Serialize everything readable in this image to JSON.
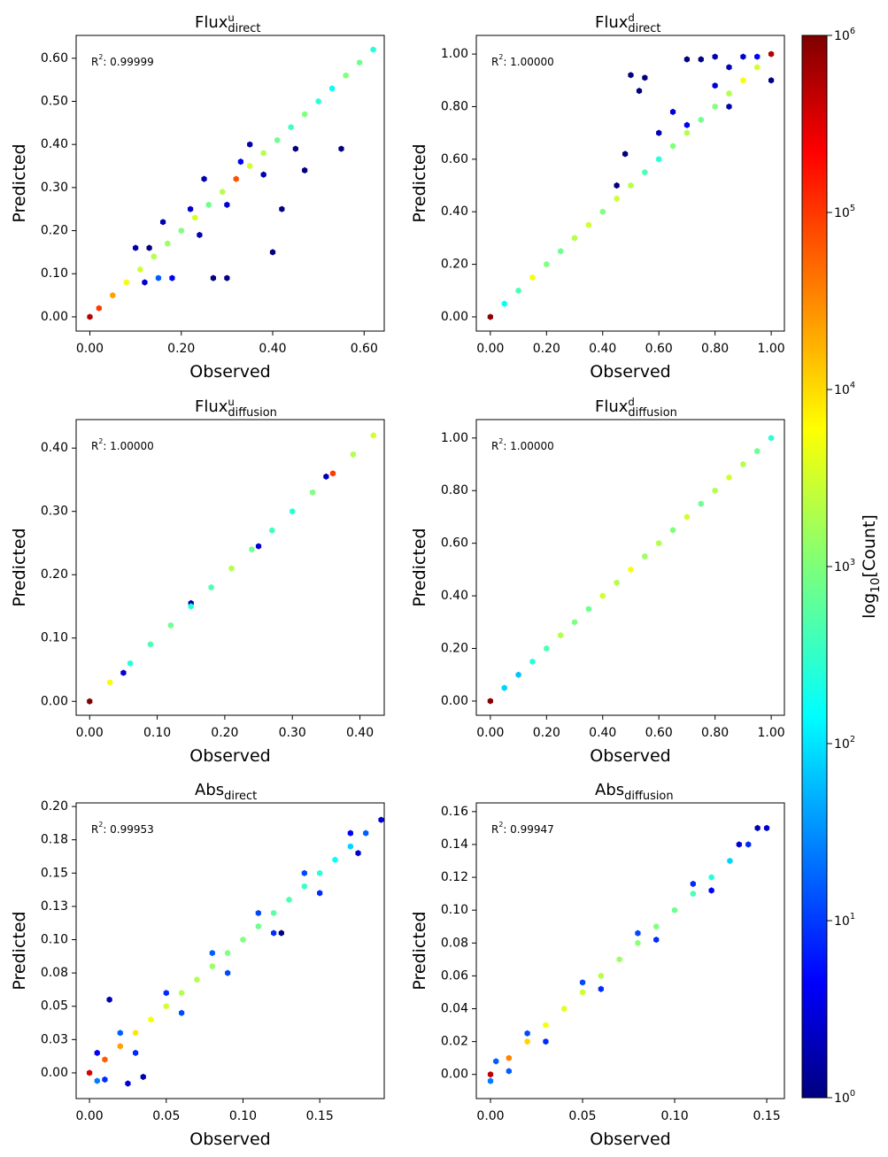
{
  "chart_data": [
    {
      "type": "hexbin",
      "title": {
        "base": "Flux",
        "sup": "u",
        "sub": "direct"
      },
      "annotation": {
        "base": "R",
        "sup": "2",
        "text": ": 0.99999"
      },
      "xlabel": "Observed",
      "ylabel": "Predicted",
      "x": [
        0.1,
        0.13,
        0.15,
        0.18,
        0.12,
        0.16,
        0.22,
        0.24,
        0.27,
        0.3,
        0.33,
        0.35,
        0.38,
        0.4,
        0.42,
        0.45,
        0.47,
        0.55,
        0.3,
        0.25,
        0,
        0.02,
        0.05,
        0.08,
        0.11,
        0.14,
        0.17,
        0.2,
        0.23,
        0.26,
        0.29,
        0.32,
        0.35,
        0.38,
        0.41,
        0.44,
        0.47,
        0.5,
        0.53,
        0.56,
        0.59,
        0.62
      ],
      "y": [
        0.16,
        0.16,
        0.09,
        0.09,
        0.08,
        0.22,
        0.25,
        0.19,
        0.09,
        0.09,
        0.36,
        0.4,
        0.33,
        0.15,
        0.25,
        0.39,
        0.34,
        0.39,
        0.26,
        0.32,
        0,
        0.02,
        0.05,
        0.08,
        0.11,
        0.14,
        0.17,
        0.2,
        0.23,
        0.26,
        0.29,
        0.32,
        0.35,
        0.38,
        0.41,
        0.44,
        0.47,
        0.5,
        0.53,
        0.56,
        0.59,
        0.62
      ],
      "counts": [
        2,
        1,
        20,
        5,
        3,
        2,
        3,
        2,
        1,
        1,
        5,
        2,
        2,
        1,
        1,
        1,
        1,
        1,
        3,
        2,
        500000,
        80000,
        20000,
        5000,
        3000,
        2000,
        1500,
        1000,
        3000,
        800,
        2000,
        60000,
        3000,
        2000,
        800,
        400,
        1000,
        300,
        200,
        1000,
        800,
        300
      ],
      "xlim": [
        -0.03,
        0.644
      ],
      "ylim": [
        -0.033,
        0.653
      ],
      "xticks": [
        {
          "value": 0,
          "label": "0.00"
        },
        {
          "value": 0.2,
          "label": "0.20"
        },
        {
          "value": 0.4,
          "label": "0.40"
        },
        {
          "value": 0.6,
          "label": "0.60"
        }
      ],
      "yticks": [
        {
          "value": 0,
          "label": "0.00"
        },
        {
          "value": 0.1,
          "label": "0.10"
        },
        {
          "value": 0.2,
          "label": "0.20"
        },
        {
          "value": 0.3,
          "label": "0.30"
        },
        {
          "value": 0.4,
          "label": "0.40"
        },
        {
          "value": 0.5,
          "label": "0.50"
        },
        {
          "value": 0.6,
          "label": "0.60"
        }
      ]
    },
    {
      "type": "hexbin",
      "title": {
        "base": "Flux",
        "sup": "d",
        "sub": "direct"
      },
      "annotation": {
        "base": "R",
        "sup": "2",
        "text": ": 1.00000"
      },
      "xlabel": "Observed",
      "ylabel": "Predicted",
      "x": [
        0.45,
        0.48,
        0.5,
        0.55,
        0.53,
        0.6,
        0.65,
        0.7,
        0.75,
        0.8,
        0.85,
        0.9,
        0.95,
        1.0,
        0.7,
        0.8,
        0.85,
        0,
        0.05,
        0.1,
        0.15,
        0.2,
        0.25,
        0.3,
        0.35,
        0.4,
        0.45,
        0.5,
        0.55,
        0.6,
        0.65,
        0.7,
        0.75,
        0.8,
        0.85,
        0.9,
        0.95,
        1.0
      ],
      "y": [
        0.5,
        0.62,
        0.92,
        0.91,
        0.86,
        0.7,
        0.78,
        0.98,
        0.98,
        0.99,
        0.95,
        0.99,
        0.99,
        0.9,
        0.73,
        0.88,
        0.8,
        0,
        0.05,
        0.1,
        0.15,
        0.2,
        0.25,
        0.3,
        0.35,
        0.4,
        0.45,
        0.5,
        0.55,
        0.6,
        0.65,
        0.7,
        0.75,
        0.8,
        0.85,
        0.9,
        0.95,
        1.0
      ],
      "counts": [
        1,
        1,
        1,
        1,
        1,
        2,
        3,
        1,
        1,
        2,
        2,
        3,
        5,
        1,
        5,
        3,
        2,
        800000,
        200,
        500,
        5000,
        1000,
        800,
        2000,
        3000,
        1000,
        3000,
        2000,
        500,
        300,
        1000,
        2000,
        800,
        1000,
        2000,
        5000,
        3000,
        500000
      ],
      "xlim": [
        -0.05,
        1.047
      ],
      "ylim": [
        -0.054,
        1.071
      ],
      "xticks": [
        {
          "value": 0,
          "label": "0.00"
        },
        {
          "value": 0.2,
          "label": "0.20"
        },
        {
          "value": 0.4,
          "label": "0.40"
        },
        {
          "value": 0.6,
          "label": "0.60"
        },
        {
          "value": 0.8,
          "label": "0.80"
        },
        {
          "value": 1,
          "label": "1.00"
        }
      ],
      "yticks": [
        {
          "value": 0,
          "label": "0.00"
        },
        {
          "value": 0.2,
          "label": "0.20"
        },
        {
          "value": 0.4,
          "label": "0.40"
        },
        {
          "value": 0.6,
          "label": "0.60"
        },
        {
          "value": 0.8,
          "label": "0.80"
        },
        {
          "value": 1,
          "label": "1.00"
        }
      ]
    },
    {
      "type": "hexbin",
      "title": {
        "base": "Flux",
        "sup": "u",
        "sub": "diffusion"
      },
      "annotation": {
        "base": "R",
        "sup": "2",
        "text": ": 1.00000"
      },
      "xlabel": "Observed",
      "ylabel": "Predicted",
      "x": [
        0.05,
        0.15,
        0.25,
        0.35,
        0,
        0.03,
        0.06,
        0.09,
        0.12,
        0.15,
        0.18,
        0.21,
        0.24,
        0.27,
        0.3,
        0.33,
        0.36,
        0.39,
        0.42
      ],
      "y": [
        0.045,
        0.155,
        0.245,
        0.355,
        0,
        0.03,
        0.06,
        0.09,
        0.12,
        0.15,
        0.18,
        0.21,
        0.24,
        0.27,
        0.3,
        0.33,
        0.36,
        0.39,
        0.42
      ],
      "counts": [
        3,
        2,
        3,
        2,
        1000000,
        5000,
        300,
        500,
        800,
        300,
        500,
        2000,
        800,
        400,
        300,
        1000,
        80000,
        2000,
        3000
      ],
      "xlim": [
        -0.02,
        0.436
      ],
      "ylim": [
        -0.022,
        0.445
      ],
      "xticks": [
        {
          "value": 0,
          "label": "0.00"
        },
        {
          "value": 0.1,
          "label": "0.10"
        },
        {
          "value": 0.2,
          "label": "0.20"
        },
        {
          "value": 0.3,
          "label": "0.30"
        },
        {
          "value": 0.4,
          "label": "0.40"
        }
      ],
      "yticks": [
        {
          "value": 0,
          "label": "0.00"
        },
        {
          "value": 0.1,
          "label": "0.10"
        },
        {
          "value": 0.2,
          "label": "0.20"
        },
        {
          "value": 0.3,
          "label": "0.30"
        },
        {
          "value": 0.4,
          "label": "0.40"
        }
      ]
    },
    {
      "type": "hexbin",
      "title": {
        "base": "Flux",
        "sup": "d",
        "sub": "diffusion"
      },
      "annotation": {
        "base": "R",
        "sup": "2",
        "text": ": 1.00000"
      },
      "xlabel": "Observed",
      "ylabel": "Predicted",
      "x": [
        0,
        0.05,
        0.1,
        0.15,
        0.2,
        0.25,
        0.3,
        0.35,
        0.4,
        0.45,
        0.5,
        0.55,
        0.6,
        0.65,
        0.7,
        0.75,
        0.8,
        0.85,
        0.9,
        0.95,
        1.0
      ],
      "y": [
        0,
        0.05,
        0.1,
        0.15,
        0.2,
        0.25,
        0.3,
        0.35,
        0.4,
        0.45,
        0.5,
        0.55,
        0.6,
        0.65,
        0.7,
        0.75,
        0.8,
        0.85,
        0.9,
        0.95,
        1.0
      ],
      "counts": [
        900000,
        100,
        80,
        300,
        500,
        2000,
        1000,
        800,
        3000,
        2000,
        5000,
        1500,
        2000,
        1000,
        3000,
        800,
        2000,
        3000,
        2000,
        800,
        300
      ],
      "xlim": [
        -0.05,
        1.047
      ],
      "ylim": [
        -0.054,
        1.07
      ],
      "xticks": [
        {
          "value": 0,
          "label": "0.00"
        },
        {
          "value": 0.2,
          "label": "0.20"
        },
        {
          "value": 0.4,
          "label": "0.40"
        },
        {
          "value": 0.6,
          "label": "0.60"
        },
        {
          "value": 0.8,
          "label": "0.80"
        },
        {
          "value": 1,
          "label": "1.00"
        }
      ],
      "yticks": [
        {
          "value": 0,
          "label": "0.00"
        },
        {
          "value": 0.2,
          "label": "0.20"
        },
        {
          "value": 0.4,
          "label": "0.40"
        },
        {
          "value": 0.6,
          "label": "0.60"
        },
        {
          "value": 0.8,
          "label": "0.80"
        },
        {
          "value": 1,
          "label": "1.00"
        }
      ]
    },
    {
      "type": "hexbin",
      "title": {
        "base": "Abs",
        "sub": "direct"
      },
      "annotation": {
        "base": "R",
        "sup": "2",
        "text": ": 0.99953"
      },
      "xlabel": "Observed",
      "ylabel": "Predicted",
      "x": [
        0.005,
        0.01,
        0.02,
        0.03,
        0.035,
        0.005,
        0.05,
        0.06,
        0.08,
        0.09,
        0.11,
        0.12,
        0.14,
        0.15,
        0.17,
        0.175,
        0.125,
        0.013,
        0.025,
        0,
        0.01,
        0.02,
        0.03,
        0.04,
        0.05,
        0.06,
        0.07,
        0.08,
        0.09,
        0.1,
        0.11,
        0.12,
        0.13,
        0.14,
        0.15,
        0.16,
        0.17,
        0.18,
        0.19
      ],
      "y": [
        -0.006,
        -0.005,
        0.03,
        0.015,
        -0.003,
        0.015,
        0.06,
        0.045,
        0.09,
        0.075,
        0.12,
        0.105,
        0.15,
        0.135,
        0.18,
        0.165,
        0.105,
        0.055,
        -0.008,
        0,
        0.01,
        0.02,
        0.03,
        0.04,
        0.05,
        0.06,
        0.07,
        0.08,
        0.09,
        0.1,
        0.11,
        0.12,
        0.13,
        0.14,
        0.15,
        0.16,
        0.17,
        0.18,
        0.19
      ],
      "counts": [
        30,
        10,
        20,
        10,
        2,
        5,
        10,
        15,
        20,
        15,
        15,
        10,
        15,
        10,
        5,
        3,
        1,
        2,
        3,
        300000,
        50000,
        20000,
        8000,
        5000,
        3000,
        2000,
        2000,
        1500,
        1000,
        1000,
        800,
        600,
        500,
        400,
        300,
        200,
        100,
        20,
        3
      ],
      "xlim": [
        -0.0087,
        0.192
      ],
      "ylim": [
        -0.0193,
        0.2027
      ],
      "xticks": [
        {
          "value": 0,
          "label": "0.00"
        },
        {
          "value": 0.05,
          "label": "0.05"
        },
        {
          "value": 0.1,
          "label": "0.10"
        },
        {
          "value": 0.15,
          "label": "0.15"
        }
      ],
      "yticks": [
        {
          "value": 0,
          "label": "0.00"
        },
        {
          "value": 0.025,
          "label": "0.03"
        },
        {
          "value": 0.05,
          "label": "0.05"
        },
        {
          "value": 0.075,
          "label": "0.08"
        },
        {
          "value": 0.1,
          "label": "0.10"
        },
        {
          "value": 0.125,
          "label": "0.13"
        },
        {
          "value": 0.15,
          "label": "0.15"
        },
        {
          "value": 0.175,
          "label": "0.18"
        },
        {
          "value": 0.2,
          "label": "0.20"
        }
      ]
    },
    {
      "type": "hexbin",
      "title": {
        "base": "Abs",
        "sub": "diffusion"
      },
      "annotation": {
        "base": "R",
        "sup": "2",
        "text": ": 0.99947"
      },
      "xlabel": "Observed",
      "ylabel": "Predicted",
      "x": [
        0.003,
        0.01,
        0.02,
        0.03,
        0.05,
        0.06,
        0.08,
        0.09,
        0.11,
        0.12,
        0.135,
        0.145,
        0.0,
        0,
        0.01,
        0.02,
        0.03,
        0.04,
        0.05,
        0.06,
        0.07,
        0.08,
        0.09,
        0.1,
        0.11,
        0.12,
        0.13,
        0.14,
        0.15
      ],
      "y": [
        0.008,
        0.002,
        0.025,
        0.02,
        0.056,
        0.052,
        0.086,
        0.082,
        0.116,
        0.112,
        0.14,
        0.15,
        -0.004,
        0,
        0.01,
        0.02,
        0.03,
        0.04,
        0.05,
        0.06,
        0.07,
        0.08,
        0.09,
        0.1,
        0.11,
        0.12,
        0.13,
        0.14,
        0.15
      ],
      "counts": [
        20,
        20,
        15,
        10,
        15,
        10,
        15,
        10,
        10,
        5,
        3,
        2,
        30,
        400000,
        30000,
        10000,
        5000,
        4000,
        3000,
        2000,
        1500,
        1200,
        1000,
        800,
        500,
        300,
        100,
        10,
        3
      ],
      "xlim": [
        -0.0077,
        0.1596
      ],
      "ylim": [
        -0.0147,
        0.1653
      ],
      "xticks": [
        {
          "value": 0,
          "label": "0.00"
        },
        {
          "value": 0.05,
          "label": "0.05"
        },
        {
          "value": 0.1,
          "label": "0.10"
        },
        {
          "value": 0.15,
          "label": "0.15"
        }
      ],
      "yticks": [
        {
          "value": 0,
          "label": "0.00"
        },
        {
          "value": 0.02,
          "label": "0.02"
        },
        {
          "value": 0.04,
          "label": "0.04"
        },
        {
          "value": 0.06,
          "label": "0.06"
        },
        {
          "value": 0.08,
          "label": "0.08"
        },
        {
          "value": 0.1,
          "label": "0.10"
        },
        {
          "value": 0.12,
          "label": "0.12"
        },
        {
          "value": 0.14,
          "label": "0.14"
        },
        {
          "value": 0.16,
          "label": "0.16"
        }
      ]
    }
  ],
  "colorbar": {
    "colormap": "jet",
    "log": true,
    "label": {
      "base": "log",
      "sub": "10",
      "text": "[Count]"
    },
    "lim": [
      1,
      1000000
    ],
    "ticks": [
      {
        "value": 1,
        "label": "10",
        "exp": "0"
      },
      {
        "value": 10,
        "label": "10",
        "exp": "1"
      },
      {
        "value": 100,
        "label": "10",
        "exp": "2"
      },
      {
        "value": 1000,
        "label": "10",
        "exp": "3"
      },
      {
        "value": 10000,
        "label": "10",
        "exp": "4"
      },
      {
        "value": 100000,
        "label": "10",
        "exp": "5"
      },
      {
        "value": 1000000,
        "label": "10",
        "exp": "6"
      }
    ]
  }
}
